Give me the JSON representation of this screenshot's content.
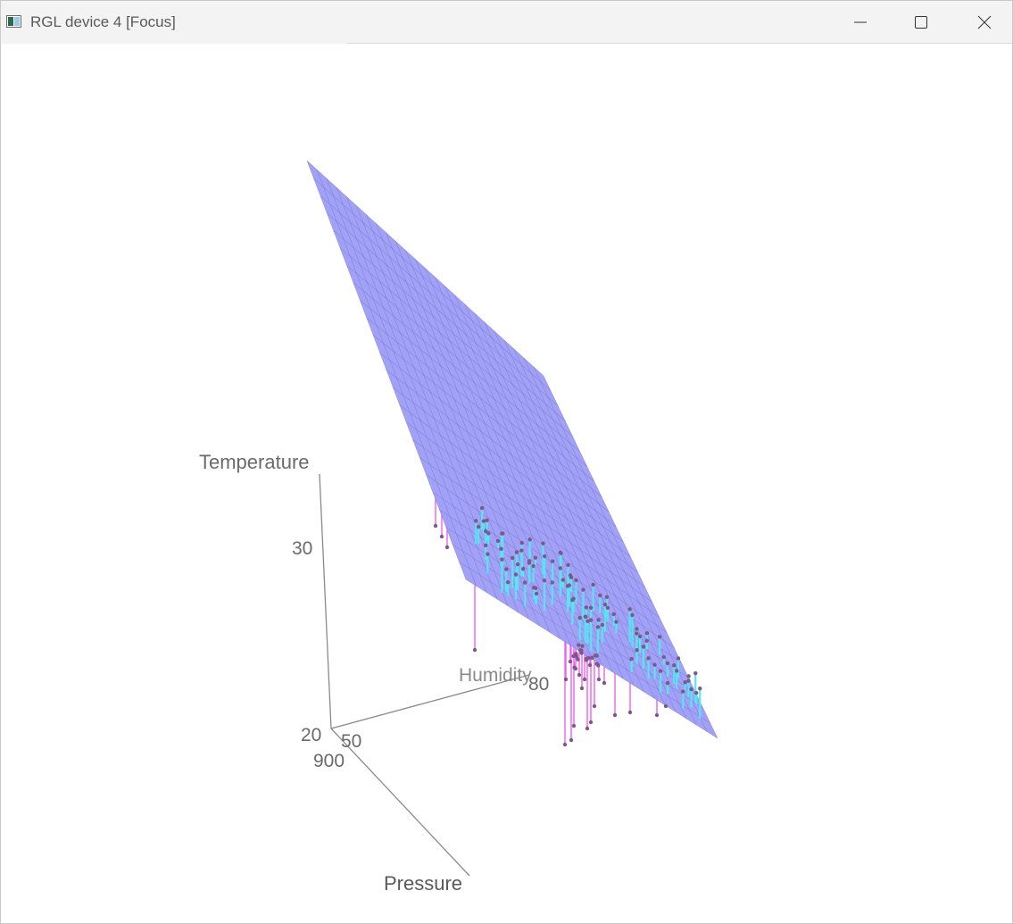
{
  "window": {
    "title": "RGL device 4 [Focus]",
    "controls": {
      "minimize_icon": "minimize-icon",
      "maximize_icon": "maximize-icon",
      "close_icon": "close-icon"
    }
  },
  "plot3d": {
    "type": "3d-scatter-with-regression-plane",
    "axes": {
      "z": {
        "title": "Temperature",
        "ticks": [
          "30",
          "20"
        ]
      },
      "y": {
        "title": "Humidity",
        "ticks": [
          "50",
          "80"
        ]
      },
      "x": {
        "title": "Pressure",
        "ticks": [
          "900"
        ]
      }
    },
    "colors": {
      "plane": "#9d9cf8",
      "plane_grid": "#6f6fb8",
      "points": "#7a5a8a",
      "residual_above": "#55e6f2",
      "residual_below": "#f25ff0",
      "axis": "#8a8a8a",
      "label": "#6a6a6a"
    }
  }
}
